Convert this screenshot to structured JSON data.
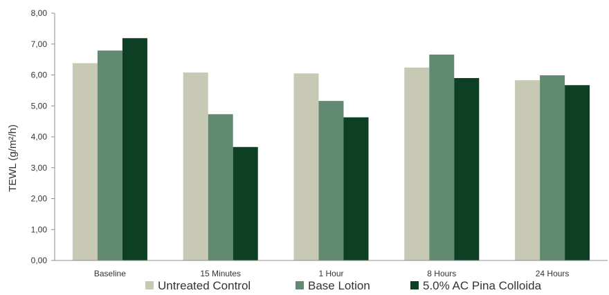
{
  "chart_data": {
    "type": "bar",
    "title": "",
    "xlabel": "",
    "ylabel": "TEWL (g/m²/h)",
    "ylim": [
      0,
      8
    ],
    "yticks": [
      "0,00",
      "1,00",
      "2,00",
      "3,00",
      "4,00",
      "5,00",
      "6,00",
      "7,00",
      "8,00"
    ],
    "categories": [
      "Baseline",
      "15 Minutes",
      "1 Hour",
      "8 Hours",
      "24 Hours"
    ],
    "series": [
      {
        "name": "Untreated Control",
        "color": "#c8c9b5",
        "values": [
          6.38,
          6.08,
          6.05,
          6.24,
          5.83
        ]
      },
      {
        "name": "Base Lotion",
        "color": "#628a72",
        "values": [
          6.79,
          4.73,
          5.16,
          6.66,
          5.99
        ]
      },
      {
        "name": "5.0% AC Pina Colloida",
        "color": "#0c3f23",
        "values": [
          7.19,
          3.67,
          4.63,
          5.9,
          5.67
        ]
      }
    ],
    "grid": false,
    "legend_position": "bottom"
  }
}
